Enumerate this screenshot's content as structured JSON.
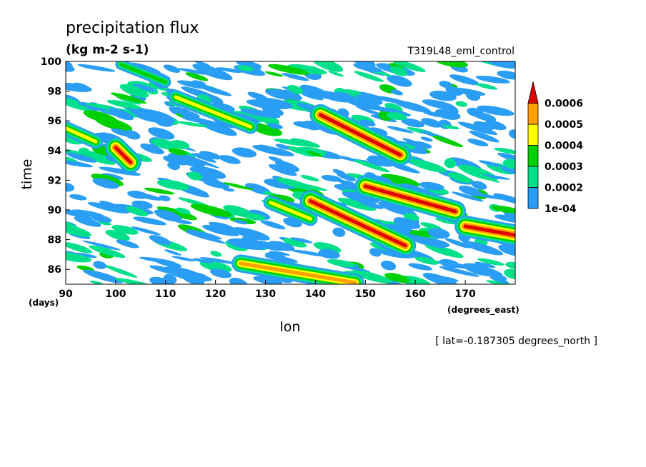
{
  "chart_data": {
    "type": "heatmap",
    "title": "precipitation flux",
    "units_label": "(kg m-2 s-1)",
    "run_label": "T319L48_eml_control",
    "xlabel": "lon",
    "x_unit": "(degrees_east)",
    "ylabel": "time",
    "y_unit": "(days)",
    "slice_label": "[ lat=-0.187305 degrees_north ]",
    "xlim": [
      90,
      180
    ],
    "ylim": [
      85,
      100
    ],
    "x_ticks": [
      90,
      100,
      110,
      120,
      130,
      140,
      150,
      160,
      170
    ],
    "y_ticks": [
      86,
      88,
      90,
      92,
      94,
      96,
      98,
      100
    ],
    "colorbar": {
      "levels": [
        "1e-04",
        "0.0002",
        "0.0003",
        "0.0004",
        "0.0005",
        "0.0006"
      ],
      "colors": [
        "#2a9df4",
        "#00e08a",
        "#00d000",
        "#ffff00",
        "#ff9f00",
        "#e00000"
      ],
      "extend": "max"
    },
    "features": [
      {
        "type": "streak",
        "lon": [
          141,
          157
        ],
        "time": [
          96.4,
          93.7
        ],
        "level": 5
      },
      {
        "type": "streak",
        "lon": [
          150,
          168
        ],
        "time": [
          91.6,
          89.9
        ],
        "level": 5
      },
      {
        "type": "streak",
        "lon": [
          139,
          158
        ],
        "time": [
          90.6,
          87.6
        ],
        "level": 5
      },
      {
        "type": "streak",
        "lon": [
          100,
          103
        ],
        "time": [
          94.2,
          93.2
        ],
        "level": 5
      },
      {
        "type": "streak",
        "lon": [
          170,
          180
        ],
        "time": [
          88.9,
          88.3
        ],
        "level": 5
      },
      {
        "type": "streak",
        "lon": [
          125,
          148
        ],
        "time": [
          86.4,
          85.1
        ],
        "level": 4
      },
      {
        "type": "streak",
        "lon": [
          131,
          139
        ],
        "time": [
          90.5,
          89.4
        ],
        "level": 3
      },
      {
        "type": "streak",
        "lon": [
          112,
          127
        ],
        "time": [
          97.6,
          95.6
        ],
        "level": 3
      },
      {
        "type": "streak",
        "lon": [
          90,
          96
        ],
        "time": [
          95.5,
          94.6
        ],
        "level": 3
      },
      {
        "type": "streak",
        "lon": [
          101,
          110
        ],
        "time": [
          99.8,
          98.6
        ],
        "level": 2
      }
    ]
  }
}
